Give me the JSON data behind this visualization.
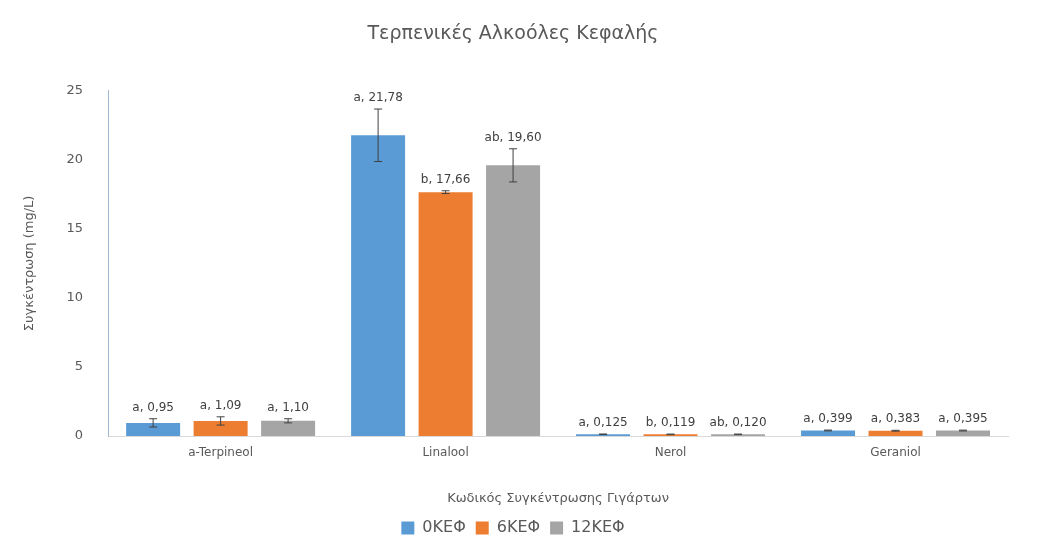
{
  "chart_data": {
    "type": "bar",
    "title": "Τερπενικές Αλκοόλες Κεφαλής",
    "xlabel": "Κωδικός Συγκέντρωσης Γιγάρτων",
    "ylabel": "Συγκέντρωση (mg/L)",
    "categories": [
      "a-Terpineol",
      "Linalool",
      "Nerol",
      "Geraniol"
    ],
    "series": [
      {
        "name": "0ΚΕΦ",
        "color": "#5b9bd5",
        "values": [
          0.95,
          21.78,
          0.125,
          0.399
        ],
        "errors": [
          0.3,
          1.9,
          0.02,
          0.03
        ],
        "value_labels": [
          "a, 0,95",
          "a, 21,78",
          "a, 0,125",
          "a, 0,399"
        ]
      },
      {
        "name": "6ΚΕΦ",
        "color": "#ed7d31",
        "values": [
          1.09,
          17.66,
          0.119,
          0.383
        ],
        "errors": [
          0.3,
          0.1,
          0.02,
          0.03
        ],
        "value_labels": [
          "a, 1,09",
          "b, 17,66",
          "b, 0,119",
          "a, 0,383"
        ]
      },
      {
        "name": "12ΚΕΦ",
        "color": "#a5a5a5",
        "values": [
          1.1,
          19.6,
          0.12,
          0.395
        ],
        "errors": [
          0.15,
          1.2,
          0.02,
          0.03
        ],
        "value_labels": [
          "a, 1,10",
          "ab, 19,60",
          "ab, 0,120",
          "a, 0,395"
        ]
      }
    ],
    "ylim": [
      0,
      25
    ],
    "yticks": [
      0,
      5,
      10,
      15,
      20,
      25
    ],
    "grid": false,
    "legend": "bottom"
  }
}
